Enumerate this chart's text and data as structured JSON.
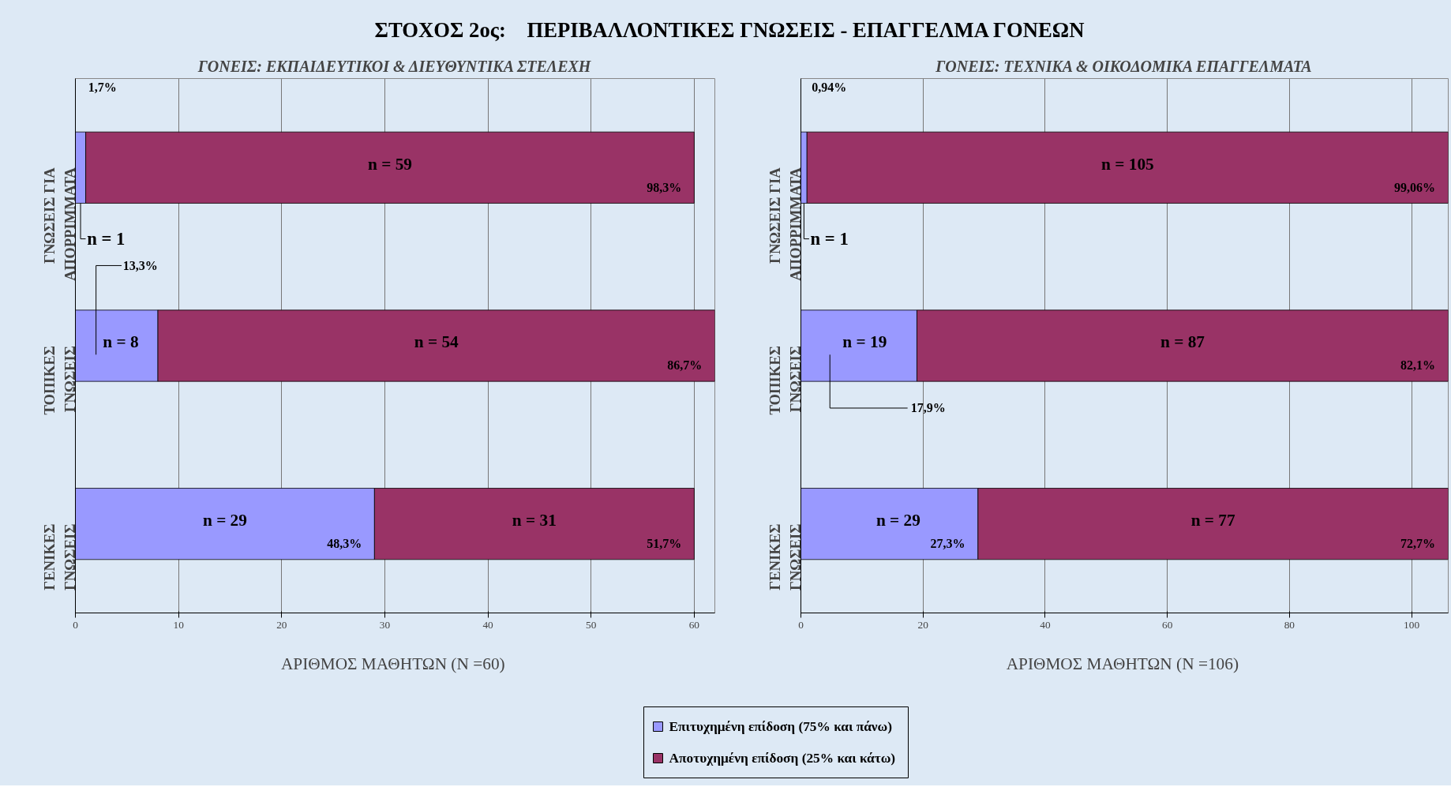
{
  "chart_data": [
    {
      "type": "bar",
      "orientation": "horizontal",
      "stacked": true,
      "title": "ΣΤΟΧΟΣ 2ος:    ΠΕΡΙΒΑΛΛΟΝΤΙΚΕΣ ΓΝΩΣΕΙΣ - ΕΠΑΓΓΕΛΜΑ ΓΟΝΕΩΝ",
      "subtitle": "ΓΟΝΕΙΣ: ΕΚΠΑΙΔΕΥΤΙΚΟΙ & ΔΙΕΥΘΥΝΤΙΚΑ ΣΤΕΛΕΧΗ",
      "xlabel": "ΑΡΙΘΜΟΣ ΜΑΘΗΤΩΝ  (N =60)",
      "categories": [
        "ΓΝΩΣΕΙΣ ΓΙΑ ΑΠΟΡΡΙΜΜΑΤΑ",
        "ΤΟΠΙΚΕΣ ΓΝΩΣΕΙΣ",
        "ΓΕΝΙΚΕΣ ΓΝΩΣΕΙΣ"
      ],
      "series": [
        {
          "color": "#9999ff",
          "values": [
            1,
            8,
            29
          ],
          "value_labels": [
            "n = 1",
            "n = 8",
            "n = 29"
          ]
        },
        {
          "color": "#993366",
          "values": [
            59,
            54,
            31
          ],
          "value_labels": [
            "n = 59",
            "n = 54",
            "n = 31"
          ]
        }
      ],
      "xlim": [
        0,
        62
      ],
      "xticks": [
        0,
        10,
        20,
        30,
        40,
        50,
        60
      ],
      "grid": "x",
      "annotations": [
        "1,7%",
        "98,3%",
        "13,3%",
        "86,7%",
        "48,3%",
        "51,7%"
      ]
    },
    {
      "type": "bar",
      "orientation": "horizontal",
      "stacked": true,
      "subtitle": "ΓΟΝΕΙΣ: ΤΕΧΝΙΚΑ & ΟΙΚΟΔΟΜΙΚΑ ΕΠΑΓΓΕΛΜΑΤΑ",
      "xlabel": "ΑΡΙΘΜΟΣ ΜΑΘΗΤΩΝ  (N =106)",
      "categories": [
        "ΓΝΩΣΕΙΣ ΓΙΑ ΑΠΟΡΡΙΜΜΑΤΑ",
        "ΤΟΠΙΚΕΣ ΓΝΩΣΕΙΣ",
        "ΓΕΝΙΚΕΣ ΓΝΩΣΕΙΣ"
      ],
      "series": [
        {
          "name": "Επιτυχημένη επίδοση (75% και πάνω)",
          "color": "#9999ff",
          "values": [
            1,
            19,
            29
          ],
          "value_labels": [
            "n = 1",
            "n = 19",
            "n = 29"
          ]
        },
        {
          "name": "Αποτυχημένη επίδοση (25% και κάτω)",
          "color": "#993366",
          "values": [
            105,
            87,
            77
          ],
          "value_labels": [
            "n = 105",
            "n = 87",
            "n = 77"
          ]
        }
      ],
      "xlim": [
        0,
        106
      ],
      "xticks": [
        0,
        20,
        40,
        60,
        80,
        100
      ],
      "grid": "x",
      "legend": "bottom",
      "annotations": [
        "0,94%",
        "99,06%",
        "17,9%",
        "82,1%",
        "27,3%",
        "72,7%"
      ]
    }
  ]
}
